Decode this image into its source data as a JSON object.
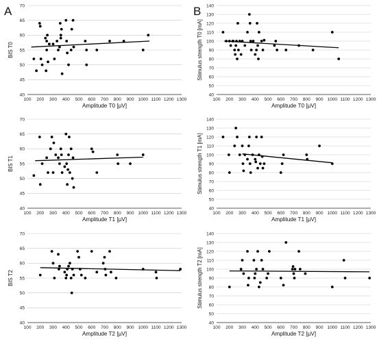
{
  "panel_labels": {
    "a": "A",
    "b": "B"
  },
  "chart_data": [
    {
      "type": "scatter",
      "column": "A",
      "row": 0,
      "xlabel": "Amplitude T0 [µV]",
      "ylabel": "BIS T0",
      "xlim": [
        100,
        1300
      ],
      "ylim": [
        40,
        70
      ],
      "xticks": [
        100,
        200,
        300,
        400,
        500,
        600,
        700,
        800,
        900,
        1000,
        1100,
        1200,
        1300
      ],
      "yticks": [
        40,
        45,
        50,
        55,
        60,
        65,
        70
      ],
      "grid": "horizontal",
      "trendline": {
        "x": [
          130,
          1050
        ],
        "y": [
          56.0,
          58.0
        ]
      },
      "points": [
        [
          150,
          52
        ],
        [
          170,
          48
        ],
        [
          195,
          64
        ],
        [
          200,
          63
        ],
        [
          205,
          52
        ],
        [
          215,
          50
        ],
        [
          240,
          59
        ],
        [
          245,
          48
        ],
        [
          250,
          55
        ],
        [
          250,
          58
        ],
        [
          255,
          60
        ],
        [
          260,
          51
        ],
        [
          270,
          57
        ],
        [
          300,
          57
        ],
        [
          310,
          52
        ],
        [
          330,
          58
        ],
        [
          340,
          55
        ],
        [
          350,
          56
        ],
        [
          355,
          64
        ],
        [
          360,
          60
        ],
        [
          360,
          59
        ],
        [
          365,
          62
        ],
        [
          370,
          47
        ],
        [
          400,
          65
        ],
        [
          405,
          58
        ],
        [
          410,
          54
        ],
        [
          420,
          50
        ],
        [
          440,
          55
        ],
        [
          445,
          62
        ],
        [
          455,
          65
        ],
        [
          460,
          56
        ],
        [
          550,
          58
        ],
        [
          560,
          55
        ],
        [
          560,
          50
        ],
        [
          640,
          55
        ],
        [
          740,
          58
        ],
        [
          850,
          58
        ],
        [
          1000,
          55
        ],
        [
          1040,
          60
        ]
      ]
    },
    {
      "type": "scatter",
      "column": "B",
      "row": 0,
      "xlabel": "Amplitude T0 [µV]",
      "ylabel": "Stimulus strength T0 [mA]",
      "xlim": [
        100,
        1300
      ],
      "ylim": [
        40,
        140
      ],
      "xticks": [
        100,
        200,
        300,
        400,
        500,
        600,
        700,
        800,
        900,
        1000,
        1100,
        1200,
        1300
      ],
      "yticks": [
        40,
        50,
        60,
        70,
        80,
        90,
        100,
        110,
        120,
        130,
        140
      ],
      "grid": "horizontal",
      "trendline": {
        "x": [
          160,
          1050
        ],
        "y": [
          100,
          92.5
        ]
      },
      "points": [
        [
          150,
          110
        ],
        [
          175,
          100
        ],
        [
          200,
          100
        ],
        [
          210,
          95
        ],
        [
          225,
          100
        ],
        [
          230,
          100
        ],
        [
          240,
          90
        ],
        [
          245,
          85
        ],
        [
          250,
          95
        ],
        [
          255,
          100
        ],
        [
          260,
          80
        ],
        [
          265,
          120
        ],
        [
          270,
          90
        ],
        [
          280,
          100
        ],
        [
          290,
          85
        ],
        [
          300,
          100
        ],
        [
          320,
          95
        ],
        [
          340,
          110
        ],
        [
          355,
          130
        ],
        [
          360,
          120
        ],
        [
          365,
          100
        ],
        [
          370,
          90
        ],
        [
          385,
          100
        ],
        [
          400,
          85
        ],
        [
          410,
          90
        ],
        [
          415,
          120
        ],
        [
          420,
          95
        ],
        [
          425,
          80
        ],
        [
          430,
          110
        ],
        [
          450,
          100
        ],
        [
          460,
          90
        ],
        [
          470,
          101
        ],
        [
          550,
          95
        ],
        [
          560,
          100
        ],
        [
          570,
          90
        ],
        [
          640,
          90
        ],
        [
          740,
          95
        ],
        [
          850,
          90
        ],
        [
          1000,
          110
        ],
        [
          1050,
          80
        ]
      ]
    },
    {
      "type": "scatter",
      "column": "A",
      "row": 1,
      "xlabel": "Amplitude T1 [µV]",
      "ylabel": "BIS T1",
      "xlim": [
        100,
        1300
      ],
      "ylim": [
        40,
        70
      ],
      "xticks": [
        100,
        200,
        300,
        400,
        500,
        600,
        700,
        800,
        900,
        1000,
        1100,
        1200,
        1300
      ],
      "yticks": [
        40,
        45,
        50,
        55,
        60,
        65,
        70
      ],
      "grid": "horizontal",
      "trendline": {
        "x": [
          160,
          1000
        ],
        "y": [
          56.0,
          57.2
        ]
      },
      "points": [
        [
          150,
          51
        ],
        [
          195,
          64
        ],
        [
          200,
          48
        ],
        [
          215,
          55
        ],
        [
          250,
          57
        ],
        [
          260,
          52
        ],
        [
          280,
          60
        ],
        [
          290,
          64
        ],
        [
          300,
          52
        ],
        [
          305,
          62
        ],
        [
          320,
          58
        ],
        [
          340,
          57
        ],
        [
          350,
          55
        ],
        [
          360,
          60
        ],
        [
          365,
          58
        ],
        [
          370,
          52
        ],
        [
          390,
          54
        ],
        [
          400,
          65
        ],
        [
          405,
          55
        ],
        [
          410,
          48
        ],
        [
          415,
          53
        ],
        [
          420,
          58
        ],
        [
          425,
          64
        ],
        [
          430,
          52
        ],
        [
          440,
          60
        ],
        [
          450,
          50
        ],
        [
          455,
          57
        ],
        [
          460,
          47
        ],
        [
          600,
          60
        ],
        [
          610,
          59
        ],
        [
          640,
          52
        ],
        [
          800,
          58
        ],
        [
          805,
          55
        ],
        [
          900,
          55
        ],
        [
          1000,
          58
        ]
      ]
    },
    {
      "type": "scatter",
      "column": "B",
      "row": 1,
      "xlabel": "Amplitude T1 [µV]",
      "ylabel": "Stimulus strength T1 [mA]",
      "xlim": [
        100,
        1300
      ],
      "ylim": [
        40,
        140
      ],
      "xticks": [
        100,
        200,
        300,
        400,
        500,
        600,
        700,
        800,
        900,
        1000,
        1100,
        1200,
        1300
      ],
      "yticks": [
        40,
        50,
        60,
        70,
        80,
        90,
        100,
        110,
        120,
        130,
        140
      ],
      "grid": "horizontal",
      "trendline": {
        "x": [
          300,
          1000
        ],
        "y": [
          101,
          91
        ]
      },
      "points": [
        [
          150,
          120
        ],
        [
          195,
          100
        ],
        [
          200,
          80
        ],
        [
          240,
          110
        ],
        [
          250,
          130
        ],
        [
          260,
          120
        ],
        [
          280,
          100
        ],
        [
          300,
          110
        ],
        [
          305,
          90
        ],
        [
          310,
          82
        ],
        [
          320,
          100
        ],
        [
          340,
          95
        ],
        [
          350,
          110
        ],
        [
          355,
          120
        ],
        [
          360,
          90
        ],
        [
          365,
          80
        ],
        [
          380,
          100
        ],
        [
          400,
          95
        ],
        [
          405,
          92
        ],
        [
          410,
          120
        ],
        [
          420,
          85
        ],
        [
          430,
          100
        ],
        [
          440,
          90
        ],
        [
          450,
          120
        ],
        [
          455,
          98
        ],
        [
          460,
          85
        ],
        [
          470,
          90
        ],
        [
          600,
          80
        ],
        [
          610,
          90
        ],
        [
          620,
          100
        ],
        [
          800,
          100
        ],
        [
          805,
          95
        ],
        [
          900,
          110
        ],
        [
          1000,
          90
        ]
      ]
    },
    {
      "type": "scatter",
      "column": "A",
      "row": 2,
      "xlabel": "Amplitude T2 [µV]",
      "ylabel": "BIS T2",
      "xlim": [
        100,
        1300
      ],
      "ylim": [
        40,
        70
      ],
      "xticks": [
        100,
        200,
        300,
        400,
        500,
        600,
        700,
        800,
        900,
        1000,
        1100,
        1200,
        1300
      ],
      "yticks": [
        40,
        45,
        50,
        55,
        60,
        65,
        70
      ],
      "grid": "horizontal",
      "trendline": {
        "x": [
          200,
          1290
        ],
        "y": [
          58.5,
          57.5
        ]
      },
      "points": [
        [
          200,
          56
        ],
        [
          290,
          64
        ],
        [
          300,
          60
        ],
        [
          310,
          55
        ],
        [
          340,
          63
        ],
        [
          345,
          58
        ],
        [
          350,
          59
        ],
        [
          390,
          57
        ],
        [
          400,
          55
        ],
        [
          405,
          56
        ],
        [
          410,
          58
        ],
        [
          420,
          59
        ],
        [
          430,
          60
        ],
        [
          440,
          55
        ],
        [
          445,
          50
        ],
        [
          450,
          58
        ],
        [
          460,
          56
        ],
        [
          490,
          64
        ],
        [
          500,
          62
        ],
        [
          510,
          58
        ],
        [
          520,
          56
        ],
        [
          550,
          55
        ],
        [
          600,
          64
        ],
        [
          640,
          57
        ],
        [
          690,
          60
        ],
        [
          700,
          62
        ],
        [
          705,
          58
        ],
        [
          710,
          56
        ],
        [
          740,
          64
        ],
        [
          750,
          57
        ],
        [
          790,
          55
        ],
        [
          1000,
          58
        ],
        [
          1100,
          57
        ],
        [
          1105,
          55
        ],
        [
          1290,
          58
        ]
      ]
    },
    {
      "type": "scatter",
      "column": "B",
      "row": 2,
      "xlabel": "Amplitude T2 [µV]",
      "ylabel": "Stimulus strength T2 [mA]",
      "xlim": [
        100,
        1300
      ],
      "ylim": [
        40,
        140
      ],
      "xticks": [
        100,
        200,
        300,
        400,
        500,
        600,
        700,
        800,
        900,
        1000,
        1100,
        1200,
        1300
      ],
      "yticks": [
        40,
        50,
        60,
        70,
        80,
        90,
        100,
        110,
        120,
        130,
        140
      ],
      "grid": "horizontal",
      "trendline": {
        "x": [
          200,
          1290
        ],
        "y": [
          98,
          97
        ]
      },
      "points": [
        [
          200,
          80
        ],
        [
          290,
          100
        ],
        [
          300,
          110
        ],
        [
          310,
          95
        ],
        [
          340,
          120
        ],
        [
          345,
          82
        ],
        [
          350,
          90
        ],
        [
          390,
          110
        ],
        [
          395,
          90
        ],
        [
          400,
          95
        ],
        [
          410,
          100
        ],
        [
          420,
          120
        ],
        [
          430,
          80
        ],
        [
          440,
          85
        ],
        [
          450,
          110
        ],
        [
          460,
          100
        ],
        [
          490,
          90
        ],
        [
          500,
          95
        ],
        [
          510,
          120
        ],
        [
          600,
          90
        ],
        [
          620,
          82
        ],
        [
          640,
          130
        ],
        [
          690,
          100
        ],
        [
          695,
          103
        ],
        [
          700,
          95
        ],
        [
          705,
          90
        ],
        [
          710,
          100
        ],
        [
          740,
          120
        ],
        [
          750,
          100
        ],
        [
          790,
          95
        ],
        [
          1000,
          80
        ],
        [
          1090,
          110
        ],
        [
          1100,
          90
        ],
        [
          1290,
          90
        ]
      ]
    }
  ]
}
